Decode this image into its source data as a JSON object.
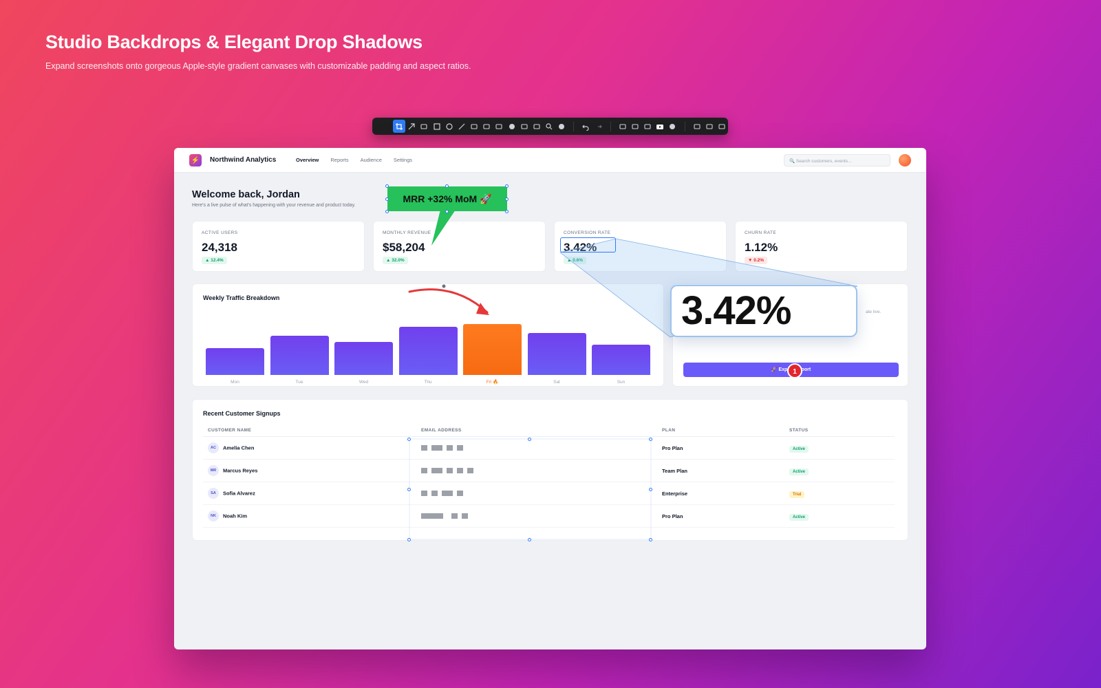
{
  "hero": {
    "title": "Studio Backdrops & Elegant Drop Shadows",
    "subtitle": "Expand screenshots onto gorgeous Apple-style gradient canvases with customizable padding and aspect ratios."
  },
  "toolbar": {
    "tools": [
      "crop",
      "arrow",
      "text-box",
      "rectangle",
      "ellipse",
      "line",
      "highlighter",
      "pen",
      "redact",
      "step",
      "pixelate",
      "eraser",
      "magnify",
      "blur",
      "undo",
      "redo",
      "capture",
      "screenshot",
      "upload",
      "record",
      "help",
      "copy",
      "save",
      "edit"
    ]
  },
  "app": {
    "brand": "Northwind Analytics",
    "logo_glyph": "⚡",
    "nav": [
      "Overview",
      "Reports",
      "Audience",
      "Settings"
    ],
    "search_placeholder": "🔍 Search customers, events...",
    "welcome_title": "Welcome back, Jordan",
    "welcome_sub": "Here's a live pulse of what's happening with your revenue and product today."
  },
  "kpis": [
    {
      "label": "ACTIVE USERS",
      "value": "24,318",
      "delta": "▲ 12.4%",
      "trend": "up"
    },
    {
      "label": "MONTHLY REVENUE",
      "value": "$58,204",
      "delta": "▲ 32.0%",
      "trend": "up"
    },
    {
      "label": "CONVERSION RATE",
      "value": "3.42%",
      "delta": "▲ 0.6%",
      "trend": "up"
    },
    {
      "label": "CHURN RATE",
      "value": "1.12%",
      "delta": "▼ 0.2%",
      "trend": "down"
    }
  ],
  "traffic": {
    "title": "Weekly Traffic Breakdown",
    "highlight_color": "#f97316",
    "bar_color": "#6d4df2"
  },
  "chart_data": {
    "type": "bar",
    "title": "Weekly Traffic Breakdown",
    "categories": [
      "Mon",
      "Tue",
      "Wed",
      "Thu",
      "Fri 🔥",
      "Sat",
      "Sun"
    ],
    "values": [
      36,
      52,
      44,
      64,
      68,
      56,
      40
    ],
    "highlighted": "Fri 🔥",
    "xlabel": "",
    "ylabel": ""
  },
  "side_panel": {
    "hint": "ate live.",
    "export_label": "🚀 Export          Report"
  },
  "signups": {
    "title": "Recent Customer Signups",
    "columns": [
      "CUSTOMER NAME",
      "EMAIL ADDRESS",
      "PLAN",
      "STATUS"
    ],
    "rows": [
      {
        "initials": "AC",
        "name": "Amelia Chen",
        "plan": "Pro Plan",
        "status": "Active"
      },
      {
        "initials": "MR",
        "name": "Marcus Reyes",
        "plan": "Team Plan",
        "status": "Active"
      },
      {
        "initials": "SA",
        "name": "Sofia Alvarez",
        "plan": "Enterprise",
        "status": "Trial"
      },
      {
        "initials": "NK",
        "name": "Noah Kim",
        "plan": "Pro Plan",
        "status": "Active"
      }
    ]
  },
  "annotations": {
    "callout": "MRR +32% MoM 🚀",
    "magnified": "3.42%",
    "step_number": "1",
    "arrow_color": "#e5383b",
    "callout_color": "#26c15a"
  }
}
